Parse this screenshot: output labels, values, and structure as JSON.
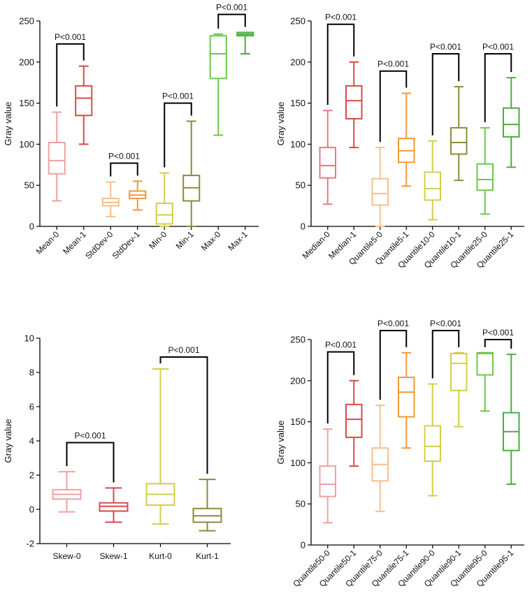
{
  "chart_data": [
    {
      "type": "box",
      "ylabel": "Gray value",
      "ylim": [
        0,
        250
      ],
      "yticks": [
        0,
        50,
        100,
        150,
        200,
        250
      ],
      "categories": [
        "Mean-0",
        "Mean-1",
        "StdDev-0",
        "StdDev-1",
        "Min-0",
        "Min-1",
        "Max-0",
        "Max-1"
      ],
      "boxes": [
        {
          "min": 31,
          "q1": 64,
          "median": 80,
          "q3": 102,
          "max": 139,
          "color": "#f0a0a0"
        },
        {
          "min": 100,
          "q1": 135,
          "median": 156,
          "q3": 171,
          "max": 195,
          "color": "#d94a4a"
        },
        {
          "min": 12,
          "q1": 25,
          "median": 29,
          "q3": 34,
          "max": 54,
          "color": "#f6c08a"
        },
        {
          "min": 20,
          "q1": 34,
          "median": 38,
          "q3": 43,
          "max": 55,
          "color": "#ee9a3a"
        },
        {
          "min": 0,
          "q1": 3,
          "median": 14,
          "q3": 28,
          "max": 65,
          "color": "#d4cc4a"
        },
        {
          "min": 0,
          "q1": 31,
          "median": 47,
          "q3": 62,
          "max": 128,
          "color": "#8c8a3a"
        },
        {
          "min": 111,
          "q1": 180,
          "median": 210,
          "q3": 232,
          "max": 234,
          "color": "#6cc84a"
        },
        {
          "min": 210,
          "q1": 232,
          "median": 234,
          "q3": 236,
          "max": 236,
          "color": "#4aae3a"
        }
      ],
      "comparisons": [
        {
          "a": 0,
          "b": 1,
          "y": 222,
          "label": "P<0.001"
        },
        {
          "a": 2,
          "b": 3,
          "y": 77,
          "label": "P<0.001"
        },
        {
          "a": 4,
          "b": 5,
          "y": 150,
          "label": "P<0.001"
        },
        {
          "a": 6,
          "b": 7,
          "y": 258,
          "label": "P<0.001"
        }
      ]
    },
    {
      "type": "box",
      "ylabel": "Gray value",
      "ylim": [
        0,
        250
      ],
      "yticks": [
        0,
        50,
        100,
        150,
        200,
        250
      ],
      "categories": [
        "Median-0",
        "Median-1",
        "Quantile5-0",
        "Quantile5-1",
        "Quantile10-0",
        "Quantile10-1",
        "Quantile25-0",
        "Quantile25-1"
      ],
      "boxes": [
        {
          "min": 27,
          "q1": 59,
          "median": 74,
          "q3": 96,
          "max": 141,
          "color": "#e67a80"
        },
        {
          "min": 96,
          "q1": 131,
          "median": 153,
          "q3": 171,
          "max": 200,
          "color": "#d94a4a"
        },
        {
          "min": 0,
          "q1": 26,
          "median": 40,
          "q3": 58,
          "max": 96,
          "color": "#f6c08a"
        },
        {
          "min": 49,
          "q1": 78,
          "median": 92,
          "q3": 107,
          "max": 162,
          "color": "#ee9a3a"
        },
        {
          "min": 8,
          "q1": 32,
          "median": 46,
          "q3": 66,
          "max": 104,
          "color": "#d4cc4a"
        },
        {
          "min": 56,
          "q1": 88,
          "median": 102,
          "q3": 120,
          "max": 170,
          "color": "#8c8a3a"
        },
        {
          "min": 15,
          "q1": 44,
          "median": 57,
          "q3": 76,
          "max": 120,
          "color": "#6cc84a"
        },
        {
          "min": 72,
          "q1": 109,
          "median": 124,
          "q3": 144,
          "max": 181,
          "color": "#4aae3a"
        }
      ],
      "comparisons": [
        {
          "a": 0,
          "b": 1,
          "y": 246,
          "label": "P<0.001"
        },
        {
          "a": 2,
          "b": 3,
          "y": 189,
          "label": "P<0.001"
        },
        {
          "a": 4,
          "b": 5,
          "y": 210,
          "label": "P<0.001"
        },
        {
          "a": 6,
          "b": 7,
          "y": 210,
          "label": "P<0.001"
        }
      ]
    },
    {
      "type": "box",
      "ylabel": "Gray value",
      "ylim": [
        -2,
        10
      ],
      "yticks": [
        -2,
        0,
        2,
        4,
        6,
        8,
        10
      ],
      "categories": [
        "Skew-0",
        "Skew-1",
        "Kurt-0",
        "Kurt-1"
      ],
      "boxes": [
        {
          "min": -0.15,
          "q1": 0.6,
          "median": 0.88,
          "q3": 1.15,
          "max": 2.2,
          "color": "#f0a0a0"
        },
        {
          "min": -0.75,
          "q1": -0.1,
          "median": 0.18,
          "q3": 0.38,
          "max": 1.25,
          "color": "#d94a4a"
        },
        {
          "min": -0.85,
          "q1": 0.25,
          "median": 0.88,
          "q3": 1.5,
          "max": 8.2,
          "color": "#d4cc4a"
        },
        {
          "min": -1.25,
          "q1": -0.75,
          "median": -0.38,
          "q3": 0.05,
          "max": 1.75,
          "color": "#8c8a3a"
        }
      ],
      "comparisons": [
        {
          "a": 0,
          "b": 1,
          "y": 3.9,
          "label": "P<0.001"
        },
        {
          "a": 2,
          "b": 3,
          "y": 8.9,
          "label": "P<0.001"
        }
      ]
    },
    {
      "type": "box",
      "ylabel": "Gray value",
      "ylim": [
        0,
        250
      ],
      "yticks": [
        0,
        50,
        100,
        150,
        200,
        250
      ],
      "categories": [
        "Quantile50-0",
        "Quantile50-1",
        "Quantile75-0",
        "Quantile75-1",
        "Quantile90-0",
        "Quantile90-1",
        "Quantile95-0",
        "Quantile95-1"
      ],
      "boxes": [
        {
          "min": 27,
          "q1": 59,
          "median": 74,
          "q3": 96,
          "max": 141,
          "color": "#f0a0a0"
        },
        {
          "min": 96,
          "q1": 131,
          "median": 153,
          "q3": 171,
          "max": 200,
          "color": "#d94a4a"
        },
        {
          "min": 41,
          "q1": 78,
          "median": 98,
          "q3": 118,
          "max": 170,
          "color": "#f6c08a"
        },
        {
          "min": 118,
          "q1": 156,
          "median": 186,
          "q3": 204,
          "max": 234,
          "color": "#ee9a3a"
        },
        {
          "min": 60,
          "q1": 102,
          "median": 120,
          "q3": 145,
          "max": 196,
          "color": "#d4cc4a"
        },
        {
          "min": 144,
          "q1": 188,
          "median": 221,
          "q3": 233,
          "max": 234,
          "color": "#d4cc4a"
        },
        {
          "min": 163,
          "q1": 207,
          "median": 233,
          "q3": 234,
          "max": 234,
          "color": "#6cc84a"
        },
        {
          "min": 74,
          "q1": 115,
          "median": 138,
          "q3": 161,
          "max": 232,
          "color": "#4aae3a"
        }
      ],
      "comparisons": [
        {
          "a": 0,
          "b": 1,
          "y": 235,
          "label": "P<0.001"
        },
        {
          "a": 2,
          "b": 3,
          "y": 261,
          "label": "P<0.001"
        },
        {
          "a": 4,
          "b": 5,
          "y": 261,
          "label": "P<0.001"
        },
        {
          "a": 6,
          "b": 7,
          "y": 250,
          "label": "P<0.001"
        }
      ]
    }
  ]
}
